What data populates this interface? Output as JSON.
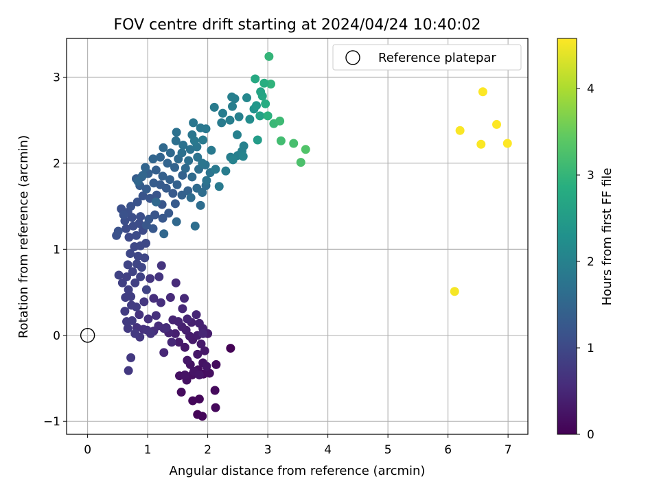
{
  "chart_data": {
    "type": "scatter",
    "title": "FOV centre drift starting at 2024/04/24 10:40:02",
    "xlabel": "Angular distance from reference (arcmin)",
    "ylabel": "Rotation from reference (arcmin)",
    "xlim": [
      -0.35,
      7.33
    ],
    "ylim": [
      -1.15,
      3.45
    ],
    "xticks": [
      0,
      1,
      2,
      3,
      4,
      5,
      6,
      7
    ],
    "yticks": [
      -1,
      0,
      1,
      2,
      3
    ],
    "xtick_labels": [
      "0",
      "1",
      "2",
      "3",
      "4",
      "5",
      "6",
      "7"
    ],
    "ytick_labels": [
      "−1",
      "0",
      "1",
      "2",
      "3"
    ],
    "grid": true,
    "legend": {
      "position": "top-right",
      "entries": [
        "Reference platepar"
      ]
    },
    "reference_point": {
      "x": 0,
      "y": 0,
      "label": "Reference platepar",
      "marker": "open-circle"
    },
    "colorbar": {
      "label": "Hours from first FF file",
      "colormap": "viridis",
      "range": [
        0,
        4.58
      ],
      "ticks": [
        0,
        1,
        2,
        3,
        4
      ],
      "tick_labels": [
        "0",
        "1",
        "2",
        "3",
        "4"
      ]
    },
    "points": [
      [
        2.38,
        -0.15,
        0.02
      ],
      [
        1.83,
        -0.92,
        0.05
      ],
      [
        1.91,
        -0.94,
        0.07
      ],
      [
        1.86,
        -0.74,
        0.08
      ],
      [
        1.75,
        -0.76,
        0.09
      ],
      [
        2.13,
        -0.84,
        0.1
      ],
      [
        2.12,
        -0.64,
        0.12
      ],
      [
        1.56,
        -0.66,
        0.13
      ],
      [
        2.14,
        -0.34,
        0.14
      ],
      [
        1.93,
        -0.45,
        0.16
      ],
      [
        1.84,
        -0.4,
        0.17
      ],
      [
        2.03,
        -0.44,
        0.18
      ],
      [
        1.74,
        -0.46,
        0.19
      ],
      [
        1.53,
        -0.47,
        0.2
      ],
      [
        1.65,
        -0.52,
        0.21
      ],
      [
        1.71,
        -0.34,
        0.22
      ],
      [
        1.62,
        -0.46,
        0.23
      ],
      [
        1.92,
        -0.32,
        0.24
      ],
      [
        1.77,
        -0.42,
        0.25
      ],
      [
        1.86,
        -0.46,
        0.26
      ],
      [
        1.98,
        -0.36,
        0.27
      ],
      [
        1.66,
        -0.29,
        0.28
      ],
      [
        1.83,
        -0.22,
        0.29
      ],
      [
        1.95,
        -0.18,
        0.3
      ],
      [
        1.62,
        -0.14,
        0.31
      ],
      [
        1.75,
        -0.05,
        0.32
      ],
      [
        1.89,
        -0.1,
        0.33
      ],
      [
        1.52,
        -0.08,
        0.34
      ],
      [
        1.7,
        -0.01,
        0.35
      ],
      [
        1.83,
        0.0,
        0.36
      ],
      [
        2.0,
        0.02,
        0.37
      ],
      [
        1.64,
        0.06,
        0.38
      ],
      [
        1.46,
        0.02,
        0.39
      ],
      [
        1.57,
        0.1,
        0.4
      ],
      [
        1.73,
        0.15,
        0.41
      ],
      [
        1.86,
        0.14,
        0.42
      ],
      [
        1.92,
        0.08,
        0.43
      ],
      [
        1.35,
        0.03,
        0.44
      ],
      [
        1.42,
        0.18,
        0.45
      ],
      [
        1.51,
        0.16,
        0.46
      ],
      [
        1.66,
        0.19,
        0.47
      ],
      [
        1.81,
        0.24,
        0.48
      ],
      [
        1.92,
        0.02,
        0.49
      ],
      [
        1.27,
        -0.2,
        0.5
      ],
      [
        1.4,
        -0.08,
        0.51
      ],
      [
        1.58,
        0.31,
        0.52
      ],
      [
        1.61,
        0.43,
        0.53
      ],
      [
        1.47,
        0.61,
        0.54
      ],
      [
        1.38,
        0.44,
        0.55
      ],
      [
        1.27,
        0.08,
        0.56
      ],
      [
        1.18,
        0.11,
        0.57
      ],
      [
        1.31,
        0.09,
        0.58
      ],
      [
        1.1,
        0.05,
        0.59
      ],
      [
        1.22,
        0.38,
        0.6
      ],
      [
        1.1,
        0.43,
        0.61
      ],
      [
        1.14,
        0.23,
        0.62
      ],
      [
        1.01,
        0.19,
        0.63
      ],
      [
        0.93,
        0.07,
        0.64
      ],
      [
        0.82,
        0.09,
        0.65
      ],
      [
        0.86,
        0.24,
        0.66
      ],
      [
        0.99,
        0.06,
        0.67
      ],
      [
        1.05,
        0.02,
        0.68
      ],
      [
        1.23,
        0.81,
        0.69
      ],
      [
        1.19,
        0.68,
        0.7
      ],
      [
        1.04,
        0.66,
        0.71
      ],
      [
        0.94,
        0.39,
        0.72
      ],
      [
        0.87,
        -0.02,
        0.73
      ],
      [
        0.72,
        -0.26,
        0.74
      ],
      [
        0.68,
        -0.41,
        0.75
      ],
      [
        0.79,
        0.02,
        0.76
      ],
      [
        0.67,
        0.08,
        0.77
      ],
      [
        0.74,
        0.17,
        0.78
      ],
      [
        0.65,
        0.16,
        0.79
      ],
      [
        0.62,
        0.28,
        0.8
      ],
      [
        0.73,
        0.35,
        0.81
      ],
      [
        0.81,
        0.33,
        0.82
      ],
      [
        0.72,
        0.45,
        0.83
      ],
      [
        0.63,
        0.44,
        0.84
      ],
      [
        0.68,
        0.53,
        0.85
      ],
      [
        0.79,
        0.61,
        0.86
      ],
      [
        0.58,
        0.61,
        0.87
      ],
      [
        0.65,
        0.68,
        0.88
      ],
      [
        0.52,
        0.7,
        0.89
      ],
      [
        0.88,
        0.68,
        0.9
      ],
      [
        0.98,
        0.53,
        0.91
      ],
      [
        0.75,
        0.74,
        0.92
      ],
      [
        0.67,
        0.82,
        0.93
      ],
      [
        0.82,
        0.83,
        0.94
      ],
      [
        0.9,
        0.79,
        0.95
      ],
      [
        0.95,
        0.9,
        0.96
      ],
      [
        0.84,
        0.92,
        0.97
      ],
      [
        0.71,
        0.95,
        0.98
      ],
      [
        0.78,
        1.03,
        0.99
      ],
      [
        0.88,
        1.04,
        1.0
      ],
      [
        0.97,
        1.07,
        1.01
      ],
      [
        0.69,
        1.14,
        1.02
      ],
      [
        0.81,
        1.16,
        1.03
      ],
      [
        0.92,
        1.22,
        1.04
      ],
      [
        0.64,
        1.24,
        1.05
      ],
      [
        0.76,
        1.27,
        1.06
      ],
      [
        0.86,
        1.3,
        1.07
      ],
      [
        0.62,
        1.33,
        1.08
      ],
      [
        0.74,
        1.37,
        1.09
      ],
      [
        0.88,
        1.38,
        1.1
      ],
      [
        0.67,
        1.43,
        1.11
      ],
      [
        0.56,
        1.47,
        1.12
      ],
      [
        0.48,
        1.16,
        1.13
      ],
      [
        0.51,
        1.21,
        1.14
      ],
      [
        0.6,
        1.4,
        1.15
      ],
      [
        0.72,
        1.5,
        1.16
      ],
      [
        0.83,
        1.55,
        1.17
      ],
      [
        0.92,
        1.62,
        1.18
      ],
      [
        1.04,
        1.59,
        1.19
      ],
      [
        1.15,
        1.63,
        1.2
      ],
      [
        1.24,
        1.52,
        1.21
      ],
      [
        1.12,
        1.4,
        1.22
      ],
      [
        1.02,
        1.35,
        1.23
      ],
      [
        0.98,
        1.28,
        1.24
      ],
      [
        1.09,
        1.24,
        1.25
      ],
      [
        1.25,
        1.36,
        1.26
      ],
      [
        1.35,
        1.42,
        1.27
      ],
      [
        1.46,
        1.53,
        1.28
      ],
      [
        1.42,
        1.65,
        1.29
      ],
      [
        1.31,
        1.71,
        1.3
      ],
      [
        1.21,
        1.75,
        1.31
      ],
      [
        1.1,
        1.77,
        1.32
      ],
      [
        0.98,
        1.7,
        1.33
      ],
      [
        0.87,
        1.74,
        1.34
      ],
      [
        0.81,
        1.82,
        1.35
      ],
      [
        0.9,
        1.84,
        1.36
      ],
      [
        1.01,
        1.88,
        1.37
      ],
      [
        1.14,
        1.92,
        1.38
      ],
      [
        1.25,
        1.85,
        1.39
      ],
      [
        1.37,
        1.81,
        1.4
      ],
      [
        1.49,
        1.75,
        1.41
      ],
      [
        1.57,
        1.63,
        1.42
      ],
      [
        1.67,
        1.68,
        1.43
      ],
      [
        1.58,
        1.86,
        1.44
      ],
      [
        1.45,
        1.95,
        1.45
      ],
      [
        1.33,
        2.0,
        1.46
      ],
      [
        1.21,
        2.07,
        1.47
      ],
      [
        1.09,
        2.05,
        1.48
      ],
      [
        0.96,
        1.95,
        1.49
      ],
      [
        0.92,
        1.86,
        1.5
      ],
      [
        0.84,
        1.79,
        1.51
      ],
      [
        1.27,
        1.18,
        1.52
      ],
      [
        1.48,
        1.32,
        1.53
      ],
      [
        1.14,
        1.55,
        1.54
      ],
      [
        1.26,
        2.18,
        1.55
      ],
      [
        1.38,
        2.12,
        1.56
      ],
      [
        1.51,
        2.05,
        1.57
      ],
      [
        1.63,
        1.94,
        1.58
      ],
      [
        1.74,
        1.84,
        1.59
      ],
      [
        1.82,
        1.71,
        1.6
      ],
      [
        1.72,
        1.6,
        1.61
      ],
      [
        1.91,
        1.66,
        1.62
      ],
      [
        1.88,
        1.51,
        1.63
      ],
      [
        1.79,
        1.27,
        1.64
      ],
      [
        1.97,
        1.74,
        1.65
      ],
      [
        1.85,
        1.93,
        1.66
      ],
      [
        1.68,
        2.03,
        1.67
      ],
      [
        1.57,
        2.12,
        1.68
      ],
      [
        1.47,
        2.26,
        1.69
      ],
      [
        1.48,
        2.36,
        1.7
      ],
      [
        1.59,
        2.21,
        1.71
      ],
      [
        1.71,
        2.16,
        1.72
      ],
      [
        1.83,
        2.07,
        1.73
      ],
      [
        1.96,
        1.98,
        1.74
      ],
      [
        2.04,
        1.89,
        1.75
      ],
      [
        1.98,
        1.8,
        1.76
      ],
      [
        1.91,
        2.0,
        1.77
      ],
      [
        1.82,
        2.19,
        1.78
      ],
      [
        1.74,
        2.33,
        1.79
      ],
      [
        1.76,
        2.47,
        1.8
      ],
      [
        1.88,
        2.41,
        1.81
      ],
      [
        1.97,
        2.4,
        1.82
      ],
      [
        1.78,
        2.26,
        1.83
      ],
      [
        2.13,
        1.93,
        1.84
      ],
      [
        2.06,
        2.15,
        1.85
      ],
      [
        2.19,
        1.73,
        1.86
      ],
      [
        1.92,
        2.27,
        1.87
      ],
      [
        2.11,
        2.65,
        1.88
      ],
      [
        2.23,
        2.47,
        1.89
      ],
      [
        2.25,
        2.58,
        1.9
      ],
      [
        2.3,
        1.91,
        1.91
      ],
      [
        2.38,
        2.07,
        1.92
      ],
      [
        2.37,
        2.5,
        1.93
      ],
      [
        2.41,
        2.66,
        1.94
      ],
      [
        2.45,
        2.75,
        1.95
      ],
      [
        2.5,
        2.09,
        1.96
      ],
      [
        2.49,
        2.33,
        1.97
      ],
      [
        2.52,
        2.54,
        1.98
      ],
      [
        2.57,
        2.14,
        1.99
      ],
      [
        2.6,
        2.2,
        2.0
      ],
      [
        2.65,
        2.76,
        2.1
      ],
      [
        2.7,
        2.51,
        2.2
      ],
      [
        2.77,
        2.63,
        2.3
      ],
      [
        2.81,
        2.67,
        2.4
      ],
      [
        2.83,
        2.27,
        2.5
      ],
      [
        2.87,
        2.55,
        2.6
      ],
      [
        2.91,
        2.78,
        2.7
      ],
      [
        2.96,
        2.69,
        2.8
      ],
      [
        3.0,
        2.55,
        2.9
      ],
      [
        3.02,
        3.24,
        3.0
      ],
      [
        3.05,
        2.92,
        2.95
      ],
      [
        3.1,
        2.46,
        3.05
      ],
      [
        3.2,
        2.49,
        3.1
      ],
      [
        3.22,
        2.26,
        3.15
      ],
      [
        3.43,
        2.23,
        3.2
      ],
      [
        3.55,
        2.01,
        3.25
      ],
      [
        3.63,
        2.16,
        3.3
      ],
      [
        2.94,
        2.93,
        2.85
      ],
      [
        2.79,
        2.98,
        2.75
      ],
      [
        2.88,
        2.83,
        2.65
      ],
      [
        2.59,
        2.08,
        2.05
      ],
      [
        2.42,
        2.04,
        2.02
      ],
      [
        2.4,
        2.77,
        1.96
      ],
      [
        6.11,
        0.51,
        4.52
      ],
      [
        6.2,
        2.38,
        4.55
      ],
      [
        6.55,
        2.22,
        4.56
      ],
      [
        6.58,
        2.83,
        4.57
      ],
      [
        6.81,
        2.45,
        4.58
      ],
      [
        6.99,
        2.23,
        4.58
      ]
    ]
  }
}
